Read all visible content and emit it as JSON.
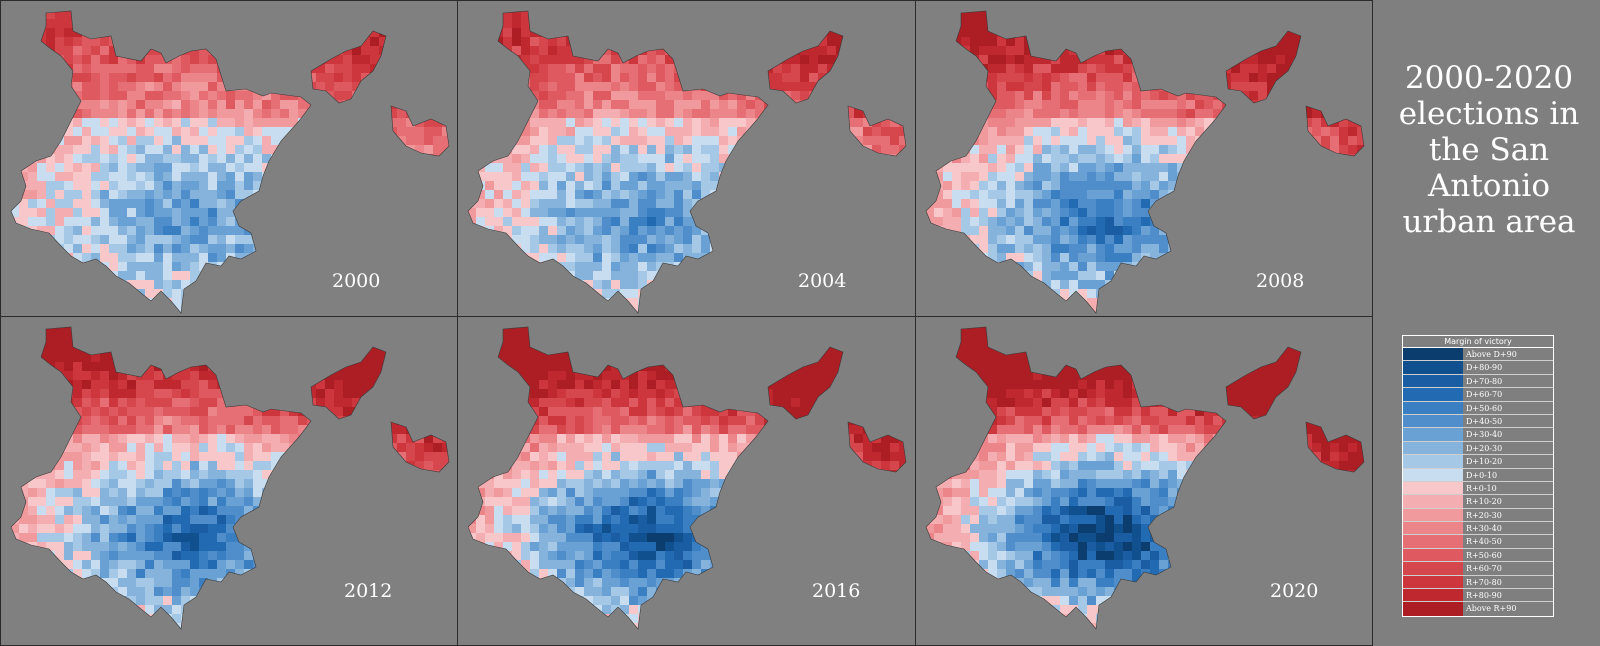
{
  "title": "2000-2020 elections in the San Antonio urban area",
  "panels": [
    {
      "year": "2000",
      "blue_scale": 0.55
    },
    {
      "year": "2004",
      "blue_scale": 0.62
    },
    {
      "year": "2008",
      "blue_scale": 0.85
    },
    {
      "year": "2012",
      "blue_scale": 0.95
    },
    {
      "year": "2016",
      "blue_scale": 1.15
    },
    {
      "year": "2020",
      "blue_scale": 1.3
    }
  ],
  "legend": {
    "title": "Margin of victory",
    "items": [
      {
        "label": "Above D+90",
        "color": "#0b3d6e"
      },
      {
        "label": "D+80-90",
        "color": "#11508e"
      },
      {
        "label": "D+70-80",
        "color": "#1a5da3"
      },
      {
        "label": "D+60-70",
        "color": "#226bb2"
      },
      {
        "label": "D+50-60",
        "color": "#3a7fc1"
      },
      {
        "label": "D+40-50",
        "color": "#4f8ecb"
      },
      {
        "label": "D+30-40",
        "color": "#6aa1d5"
      },
      {
        "label": "D+20-30",
        "color": "#86b3dc"
      },
      {
        "label": "D+10-20",
        "color": "#a5c8e6"
      },
      {
        "label": "D+0-10",
        "color": "#c8def0"
      },
      {
        "label": "R+0-10",
        "color": "#f7c7c9"
      },
      {
        "label": "R+10-20",
        "color": "#f4aeb1"
      },
      {
        "label": "R+20-30",
        "color": "#f09a9d"
      },
      {
        "label": "R+30-40",
        "color": "#eb8589"
      },
      {
        "label": "R+40-50",
        "color": "#e56f74"
      },
      {
        "label": "R+50-60",
        "color": "#de5a60"
      },
      {
        "label": "R+60-70",
        "color": "#d6474d"
      },
      {
        "label": "R+70-80",
        "color": "#cc363c"
      },
      {
        "label": "R+80-90",
        "color": "#c0282f"
      },
      {
        "label": "Above R+90",
        "color": "#ad1d24"
      }
    ]
  }
}
